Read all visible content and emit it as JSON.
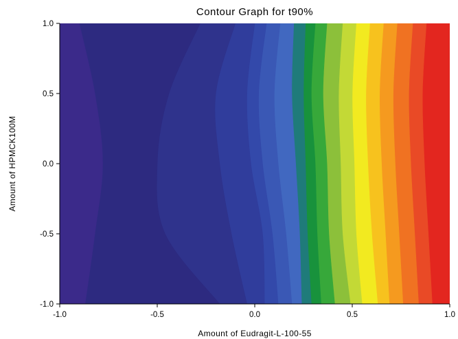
{
  "chart_data": {
    "type": "heatmap",
    "title": "Contour Graph for t90%",
    "xlabel": "Amount of Eudragit-L-100-55",
    "ylabel": "Amount of HPMCK100M",
    "xlim": [
      -1.0,
      1.0
    ],
    "ylim": [
      -1.0,
      1.0
    ],
    "x_ticks": [
      "-1.0",
      "-0.5",
      "0.0",
      "0.5",
      "1.0"
    ],
    "y_ticks": [
      "1.0",
      "0.5",
      "0.0",
      "-0.5",
      "-1.0"
    ],
    "grid": false,
    "legend": "none",
    "contour_levels": [
      {
        "color": "#3b2a8a",
        "boundary_x": [
          [
            -1.0,
            -0.87
          ],
          [
            -0.5,
            -0.82
          ],
          [
            0.0,
            -0.78
          ],
          [
            0.5,
            -0.82
          ],
          [
            1.0,
            -0.9
          ]
        ]
      },
      {
        "color": "#2d2a80",
        "boundary_x": [
          [
            -1.0,
            -0.18
          ],
          [
            -0.5,
            -0.46
          ],
          [
            0.0,
            -0.5
          ],
          [
            0.5,
            -0.44
          ],
          [
            1.0,
            -0.28
          ]
        ]
      },
      {
        "color": "#2f338c",
        "boundary_x": [
          [
            -1.0,
            -0.04
          ],
          [
            -0.5,
            -0.12
          ],
          [
            0.0,
            -0.18
          ],
          [
            0.5,
            -0.2
          ],
          [
            1.0,
            -0.1
          ]
        ]
      },
      {
        "color": "#303d9c",
        "boundary_x": [
          [
            -1.0,
            0.05
          ],
          [
            -0.5,
            0.04
          ],
          [
            0.0,
            -0.02
          ],
          [
            0.5,
            -0.04
          ],
          [
            1.0,
            0.0
          ]
        ]
      },
      {
        "color": "#3349aa",
        "boundary_x": [
          [
            -1.0,
            0.12
          ],
          [
            -0.5,
            0.09
          ],
          [
            0.0,
            0.04
          ],
          [
            0.5,
            0.02
          ],
          [
            1.0,
            0.06
          ]
        ]
      },
      {
        "color": "#3a58b5",
        "boundary_x": [
          [
            -1.0,
            0.19
          ],
          [
            -0.5,
            0.16
          ],
          [
            0.0,
            0.12
          ],
          [
            0.5,
            0.1
          ],
          [
            1.0,
            0.13
          ]
        ]
      },
      {
        "color": "#4168c0",
        "boundary_x": [
          [
            -1.0,
            0.24
          ],
          [
            -0.5,
            0.23
          ],
          [
            0.0,
            0.21
          ],
          [
            0.5,
            0.19
          ],
          [
            1.0,
            0.2
          ]
        ]
      },
      {
        "color": "#1f7b7a",
        "boundary_x": [
          [
            -1.0,
            0.29
          ],
          [
            -0.5,
            0.27
          ],
          [
            0.0,
            0.26
          ],
          [
            0.5,
            0.25
          ],
          [
            1.0,
            0.26
          ]
        ]
      },
      {
        "color": "#18923c",
        "boundary_x": [
          [
            -1.0,
            0.34
          ],
          [
            -0.5,
            0.32
          ],
          [
            0.0,
            0.31
          ],
          [
            0.5,
            0.29
          ],
          [
            1.0,
            0.31
          ]
        ]
      },
      {
        "color": "#37a83a",
        "boundary_x": [
          [
            -1.0,
            0.41
          ],
          [
            -0.5,
            0.38
          ],
          [
            0.0,
            0.37
          ],
          [
            0.5,
            0.35
          ],
          [
            1.0,
            0.37
          ]
        ]
      },
      {
        "color": "#8cc03a",
        "boundary_x": [
          [
            -1.0,
            0.49
          ],
          [
            -0.5,
            0.45
          ],
          [
            0.0,
            0.44
          ],
          [
            0.5,
            0.43
          ],
          [
            1.0,
            0.45
          ]
        ]
      },
      {
        "color": "#c3d936",
        "boundary_x": [
          [
            -1.0,
            0.55
          ],
          [
            -0.5,
            0.52
          ],
          [
            0.0,
            0.51
          ],
          [
            0.5,
            0.5
          ],
          [
            1.0,
            0.52
          ]
        ]
      },
      {
        "color": "#f2ea20",
        "boundary_x": [
          [
            -1.0,
            0.63
          ],
          [
            -0.5,
            0.6
          ],
          [
            0.0,
            0.58
          ],
          [
            0.5,
            0.57
          ],
          [
            1.0,
            0.59
          ]
        ]
      },
      {
        "color": "#f7c21e",
        "boundary_x": [
          [
            -1.0,
            0.69
          ],
          [
            -0.5,
            0.67
          ],
          [
            0.0,
            0.65
          ],
          [
            0.5,
            0.64
          ],
          [
            1.0,
            0.66
          ]
        ]
      },
      {
        "color": "#f59a1f",
        "boundary_x": [
          [
            -1.0,
            0.76
          ],
          [
            -0.5,
            0.74
          ],
          [
            0.0,
            0.72
          ],
          [
            0.5,
            0.71
          ],
          [
            1.0,
            0.73
          ]
        ]
      },
      {
        "color": "#f07222",
        "boundary_x": [
          [
            -1.0,
            0.84
          ],
          [
            -0.5,
            0.82
          ],
          [
            0.0,
            0.8
          ],
          [
            0.5,
            0.79
          ],
          [
            1.0,
            0.81
          ]
        ]
      },
      {
        "color": "#e94a26",
        "boundary_x": [
          [
            -1.0,
            0.91
          ],
          [
            -0.5,
            0.89
          ],
          [
            0.0,
            0.87
          ],
          [
            0.5,
            0.86
          ],
          [
            1.0,
            0.88
          ]
        ]
      },
      {
        "color": "#e3261f",
        "boundary_x": [
          [
            -1.0,
            1.0
          ],
          [
            1.0,
            1.0
          ]
        ]
      }
    ]
  }
}
